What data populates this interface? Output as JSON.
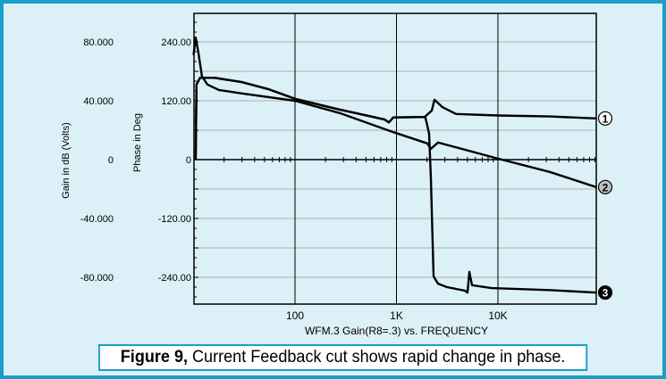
{
  "chart_data": {
    "type": "line",
    "title": "WFM.3  Gain(R8=.3)  vs. FREQUENCY",
    "xlabel": "WFM.3  Gain(R8=.3)  vs. FREQUENCY",
    "x_scale": "log",
    "xlim": [
      10,
      100000
    ],
    "x_ticks": [
      {
        "value": 100,
        "label": "100"
      },
      {
        "value": 1000,
        "label": "1K"
      },
      {
        "value": 10000,
        "label": "10K"
      }
    ],
    "y_axes": [
      {
        "label": "Gain in dB (Volts)",
        "ticks": [
          {
            "value": 80,
            "label": "80.000"
          },
          {
            "value": 40,
            "label": "40.000"
          },
          {
            "value": 0,
            "label": "0"
          },
          {
            "value": -40,
            "label": "-40.000"
          },
          {
            "value": -80,
            "label": "-80.000"
          }
        ],
        "lim": [
          -100,
          100
        ]
      },
      {
        "label": "Phase in Deg",
        "ticks": [
          {
            "value": 240,
            "label": "240.00"
          },
          {
            "value": 120,
            "label": "120.00"
          },
          {
            "value": 0,
            "label": "0"
          },
          {
            "value": -120,
            "label": "-120.00"
          },
          {
            "value": -240,
            "label": "-240.00"
          }
        ],
        "lim": [
          -300,
          300
        ]
      }
    ],
    "grid": true,
    "series": [
      {
        "name": "1",
        "marker_color": "#ffffff",
        "points": [
          [
            10.5,
            0
          ],
          [
            10.7,
            153
          ],
          [
            11.6,
            167
          ],
          [
            16,
            167
          ],
          [
            30,
            158
          ],
          [
            54,
            144
          ],
          [
            100,
            124
          ],
          [
            276,
            102
          ],
          [
            760,
            82
          ],
          [
            841,
            76
          ],
          [
            931,
            86
          ],
          [
            1895,
            87
          ],
          [
            2230,
            100
          ],
          [
            2370,
            122
          ],
          [
            2840,
            107
          ],
          [
            3860,
            93
          ],
          [
            10000,
            90
          ],
          [
            32400,
            88
          ],
          [
            93000,
            84
          ]
        ]
      },
      {
        "name": "2",
        "marker_color": "#c0c0c0",
        "points": [
          [
            10,
            213
          ],
          [
            10.5,
            249
          ],
          [
            11.2,
            216
          ],
          [
            12.1,
            170
          ],
          [
            13.7,
            153
          ],
          [
            17.8,
            142
          ],
          [
            30,
            135
          ],
          [
            100,
            120
          ],
          [
            276,
            95
          ],
          [
            931,
            56
          ],
          [
            2014,
            33
          ],
          [
            2184,
            22
          ],
          [
            2570,
            35
          ],
          [
            10000,
            2
          ],
          [
            32400,
            -25
          ],
          [
            93000,
            -56
          ]
        ]
      },
      {
        "name": "3",
        "marker_color": "#000000",
        "points": [
          [
            10.5,
            0
          ],
          [
            10.7,
            153
          ],
          [
            11.6,
            167
          ],
          [
            16,
            167
          ],
          [
            30,
            158
          ],
          [
            54,
            144
          ],
          [
            100,
            124
          ],
          [
            276,
            102
          ],
          [
            760,
            82
          ],
          [
            841,
            76
          ],
          [
            931,
            86
          ],
          [
            1895,
            87
          ],
          [
            1933,
            85
          ],
          [
            2097,
            53
          ],
          [
            2184,
            -38
          ],
          [
            2321,
            -238
          ],
          [
            2570,
            -253
          ],
          [
            3150,
            -260
          ],
          [
            4725,
            -267
          ],
          [
            5015,
            -271
          ],
          [
            5225,
            -229
          ],
          [
            5550,
            -256
          ],
          [
            8670,
            -262
          ],
          [
            32400,
            -266
          ],
          [
            93000,
            -271
          ]
        ]
      }
    ],
    "colors": {
      "frame": "#1a9fc9",
      "background": "#dcf0f8",
      "grid": "#b4bcbf",
      "line": "#000000"
    }
  },
  "caption": {
    "bold": "Figure 9,",
    "text": " Current Feedback cut shows rapid change in phase."
  }
}
